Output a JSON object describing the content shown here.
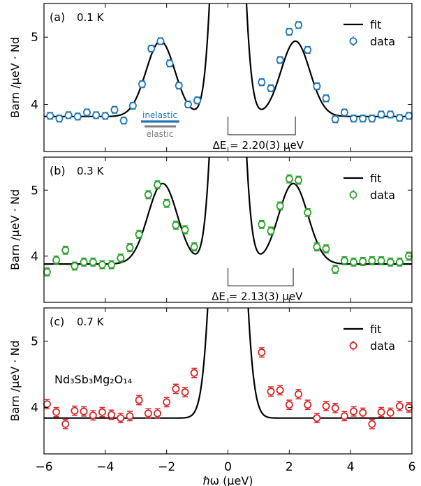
{
  "figure": {
    "xlabel": "ℏω (μeV)",
    "xlim": [
      -6,
      6
    ],
    "xticks": [
      -6,
      -4,
      -2,
      0,
      2,
      4,
      6
    ],
    "xtick_labels": [
      "−6",
      "−4",
      "−2",
      "0",
      "2",
      "4",
      "6"
    ],
    "sample_label": "Nd₃Sb₃Mg₂O₁₄",
    "res_legend": {
      "inelastic": "inelastic",
      "elastic": "elastic"
    }
  },
  "chart_data": [
    {
      "type": "scatter",
      "panel_label": "(a)",
      "temperature": "0.1 K",
      "ylabel": "Barn /μeV · Nd",
      "ylim": [
        3.3,
        5.5
      ],
      "yticks": [
        4,
        5
      ],
      "legend": {
        "fit": "fit",
        "data": "data",
        "position": "top-right"
      },
      "color": "#1f77b4",
      "delta_e": {
        "label": "ΔE = 2.20(3) μeV",
        "x0": 0.0,
        "x1": 2.2,
        "y": 3.82
      },
      "fit": {
        "baseline": 3.82,
        "peak_center": 2.2,
        "peak_amp": 1.12,
        "peak_sigma": 0.47,
        "elastic_amp": 9.0,
        "elastic_sigma": 0.33
      },
      "series": [
        {
          "name": "data",
          "x": [
            -5.8,
            -5.5,
            -5.2,
            -4.9,
            -4.6,
            -4.3,
            -4.0,
            -3.7,
            -3.4,
            -3.1,
            -2.8,
            -2.5,
            -2.2,
            -1.9,
            -1.6,
            -1.3,
            -1.0,
            1.1,
            1.4,
            1.7,
            2.0,
            2.3,
            2.6,
            2.9,
            3.2,
            3.5,
            3.8,
            4.1,
            4.4,
            4.7,
            5.0,
            5.3,
            5.6,
            5.9
          ],
          "y": [
            3.83,
            3.79,
            3.84,
            3.82,
            3.88,
            3.84,
            3.83,
            3.92,
            3.76,
            3.98,
            4.3,
            4.83,
            4.94,
            4.61,
            4.28,
            4.0,
            4.06,
            4.33,
            4.24,
            4.66,
            5.08,
            5.18,
            4.81,
            4.27,
            4.09,
            3.78,
            3.88,
            3.79,
            3.79,
            3.79,
            3.85,
            3.85,
            3.8,
            3.83
          ],
          "err": [
            0.05,
            0.05,
            0.05,
            0.05,
            0.05,
            0.05,
            0.05,
            0.05,
            0.05,
            0.05,
            0.05,
            0.05,
            0.05,
            0.05,
            0.05,
            0.05,
            0.05,
            0.05,
            0.05,
            0.05,
            0.05,
            0.05,
            0.05,
            0.05,
            0.05,
            0.05,
            0.05,
            0.05,
            0.05,
            0.05,
            0.05,
            0.05,
            0.05,
            0.05
          ]
        }
      ]
    },
    {
      "type": "scatter",
      "panel_label": "(b)",
      "temperature": "0.3 K",
      "ylabel": "Barn /μeV · Nd",
      "ylim": [
        3.3,
        5.5
      ],
      "yticks": [
        4,
        5
      ],
      "legend": {
        "fit": "fit",
        "data": "data",
        "position": "top-right"
      },
      "color": "#2ca02c",
      "delta_e": {
        "label": "ΔE = 2.13(3) μeV",
        "x0": 0.0,
        "x1": 2.13,
        "y": 3.89
      },
      "fit": {
        "baseline": 3.88,
        "peak_center": 2.13,
        "peak_amp": 1.22,
        "peak_sigma": 0.48,
        "elastic_amp": 9.0,
        "elastic_sigma": 0.33
      },
      "series": [
        {
          "name": "data",
          "x": [
            -5.9,
            -5.6,
            -5.3,
            -5.0,
            -4.7,
            -4.4,
            -4.1,
            -3.8,
            -3.5,
            -3.2,
            -2.9,
            -2.6,
            -2.3,
            -2.0,
            -1.7,
            -1.4,
            -1.1,
            1.1,
            1.4,
            1.7,
            2.0,
            2.3,
            2.6,
            2.9,
            3.2,
            3.5,
            3.8,
            4.1,
            4.4,
            4.7,
            5.0,
            5.3,
            5.6,
            5.9
          ],
          "y": [
            3.76,
            3.94,
            4.09,
            3.85,
            3.91,
            3.91,
            3.87,
            3.87,
            3.97,
            4.13,
            4.33,
            4.93,
            5.08,
            4.8,
            4.47,
            4.4,
            4.14,
            4.48,
            4.38,
            4.76,
            5.17,
            5.15,
            4.66,
            4.14,
            4.11,
            3.8,
            3.93,
            3.91,
            3.92,
            3.93,
            3.93,
            3.91,
            3.91,
            4.0
          ],
          "err": [
            0.06,
            0.06,
            0.06,
            0.06,
            0.06,
            0.06,
            0.06,
            0.06,
            0.06,
            0.06,
            0.06,
            0.06,
            0.06,
            0.06,
            0.06,
            0.06,
            0.06,
            0.06,
            0.06,
            0.06,
            0.06,
            0.06,
            0.06,
            0.06,
            0.06,
            0.06,
            0.06,
            0.06,
            0.06,
            0.06,
            0.06,
            0.06,
            0.06,
            0.06
          ]
        }
      ]
    },
    {
      "type": "scatter",
      "panel_label": "(c)",
      "temperature": "0.7 K",
      "ylabel": "Barn /μeV · Nd",
      "ylim": [
        3.3,
        5.5
      ],
      "yticks": [
        4,
        5
      ],
      "legend": {
        "fit": "fit",
        "data": "data",
        "position": "top-right"
      },
      "color": "#d62728",
      "fit": {
        "baseline": 3.84,
        "peak_center": 0,
        "peak_amp": 0,
        "peak_sigma": 1,
        "elastic_amp": 9.0,
        "elastic_sigma": 0.36
      },
      "series": [
        {
          "name": "data",
          "x": [
            -5.9,
            -5.6,
            -5.3,
            -5.0,
            -4.7,
            -4.4,
            -4.1,
            -3.8,
            -3.5,
            -3.2,
            -2.9,
            -2.6,
            -2.3,
            -2.0,
            -1.7,
            -1.4,
            -1.1,
            1.1,
            1.4,
            1.7,
            2.0,
            2.3,
            2.6,
            2.9,
            3.2,
            3.5,
            3.8,
            4.1,
            4.4,
            4.7,
            5.0,
            5.3,
            5.6,
            5.9
          ],
          "y": [
            4.05,
            3.93,
            3.75,
            3.95,
            3.94,
            3.88,
            3.93,
            3.89,
            3.84,
            3.87,
            4.11,
            3.91,
            3.91,
            4.08,
            4.28,
            4.23,
            4.52,
            4.83,
            4.24,
            4.26,
            4.04,
            4.2,
            4.04,
            3.84,
            4.02,
            3.99,
            3.87,
            3.94,
            3.92,
            3.75,
            3.93,
            3.92,
            4.02,
            4.0
          ],
          "err": [
            0.07,
            0.07,
            0.07,
            0.07,
            0.07,
            0.07,
            0.07,
            0.07,
            0.07,
            0.07,
            0.07,
            0.07,
            0.07,
            0.07,
            0.07,
            0.07,
            0.07,
            0.07,
            0.07,
            0.07,
            0.07,
            0.07,
            0.07,
            0.07,
            0.07,
            0.07,
            0.07,
            0.07,
            0.07,
            0.07,
            0.07,
            0.07,
            0.07,
            0.07
          ]
        }
      ]
    }
  ]
}
